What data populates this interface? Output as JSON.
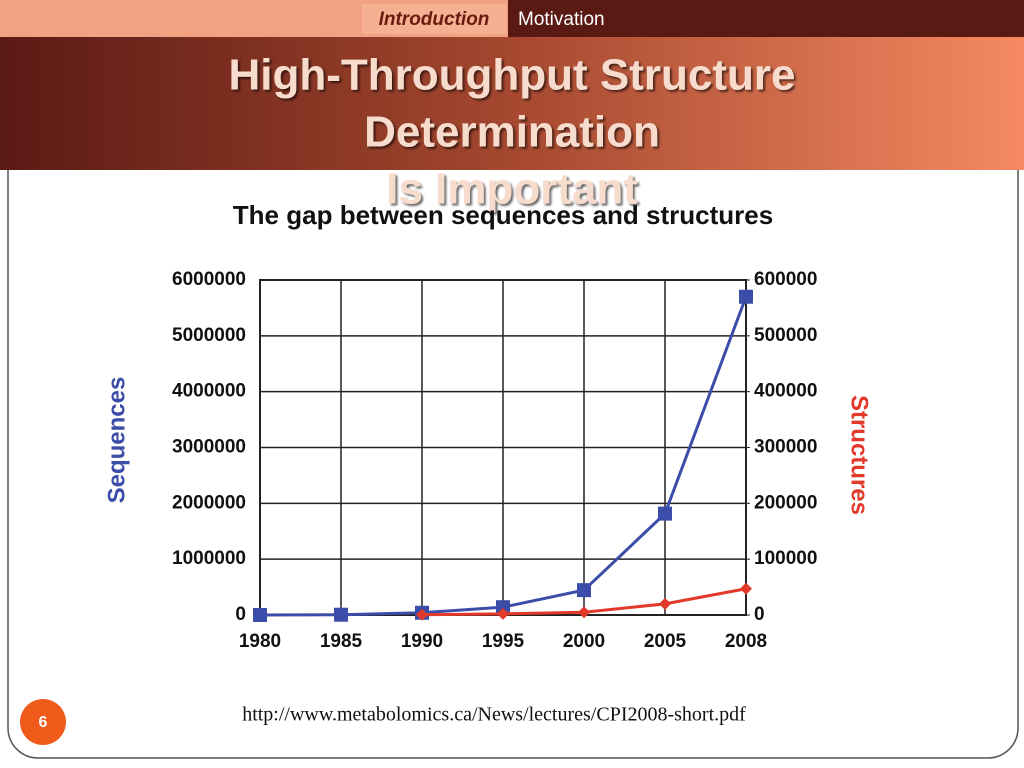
{
  "nav": {
    "current": "Introduction",
    "next": "Motivation"
  },
  "slide_title_lines": [
    "High-Throughput Structure",
    "Determination",
    "Is Important"
  ],
  "source": "http://www.metabolomics.ca/News/lectures/CPI2008-short.pdf",
  "page_number": "6",
  "chart_data": {
    "type": "line",
    "title": "The gap between sequences and structures",
    "categories": [
      "1980",
      "1985",
      "1990",
      "1995",
      "2000",
      "2005",
      "2008"
    ],
    "y_label": "Sequences",
    "y2_label": "Structures",
    "series": [
      {
        "name": "Sequences",
        "color": "#3b4da8",
        "marker": "square",
        "values": [
          600,
          5000,
          40000,
          140000,
          445000,
          1816000,
          5700000
        ]
      },
      {
        "name": "Structures",
        "color": "#e2392a",
        "marker": "diamond",
        "axis": "y2",
        "values": [
          null,
          null,
          500,
          2000,
          5000,
          20000,
          47000
        ]
      }
    ],
    "ylim": [
      0,
      6000000
    ],
    "yticks": [
      0,
      1000000,
      2000000,
      3000000,
      4000000,
      5000000,
      6000000
    ],
    "y2lim": [
      0,
      600000
    ],
    "y2ticks": [
      0,
      100000,
      200000,
      300000,
      400000,
      500000,
      600000
    ],
    "grid": true
  }
}
